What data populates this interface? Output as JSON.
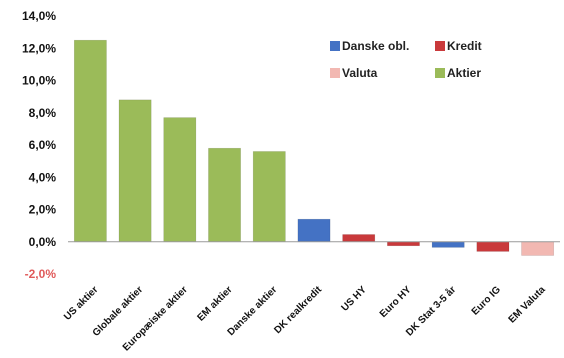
{
  "chart_data": {
    "type": "bar",
    "title": "",
    "xlabel": "",
    "ylabel": "",
    "ylim": [
      -2,
      14
    ],
    "y_ticks": [
      14,
      12,
      10,
      8,
      6,
      4,
      2,
      0,
      -2
    ],
    "y_tick_labels": [
      "14,0%",
      "12,0%",
      "10,0%",
      "8,0%",
      "6,0%",
      "4,0%",
      "2,0%",
      "0,0%",
      "-2,0%"
    ],
    "grid": false,
    "legend_position": "top-right",
    "categories": [
      "US aktier",
      "Globale aktier",
      "Europæiske aktier",
      "EM aktier",
      "Danske aktier",
      "DK realkredit",
      "US HY",
      "Euro HY",
      "DK Stat 3-5 år",
      "Euro IG",
      "EM Valuta"
    ],
    "values": [
      12.5,
      8.8,
      7.7,
      5.8,
      5.6,
      1.4,
      0.45,
      -0.25,
      -0.35,
      -0.6,
      -0.85
    ],
    "bar_groups": [
      "Aktier",
      "Aktier",
      "Aktier",
      "Aktier",
      "Aktier",
      "Danske obl.",
      "Kredit",
      "Kredit",
      "Danske obl.",
      "Kredit",
      "Valuta"
    ],
    "legend": [
      {
        "name": "Danske obl.",
        "color": "#4472C4"
      },
      {
        "name": "Kredit",
        "color": "#C9393B"
      },
      {
        "name": "Valuta",
        "color": "#F2B8B2"
      },
      {
        "name": "Aktier",
        "color": "#9BBB59"
      }
    ],
    "negative_tick_color": "#E05A5A"
  }
}
